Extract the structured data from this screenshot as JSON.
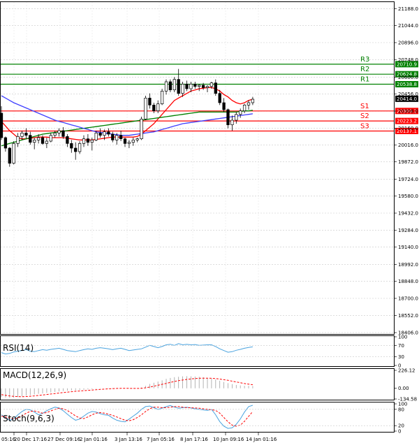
{
  "chart_data": [
    {
      "name": "main",
      "type": "candlestick",
      "title": "",
      "ylim": [
        18406,
        21190
      ],
      "y_ticks": [
        "21188.0",
        "21044.0",
        "20896.0",
        "20748.0",
        "20600.0",
        "20456.0",
        "20308.0",
        "20160.0",
        "20016.0",
        "19872.0",
        "19724.0",
        "19580.0",
        "19432.0",
        "19284.0",
        "19140.0",
        "18992.0",
        "18848.0",
        "18700.0",
        "18552.0",
        "18406.0"
      ],
      "x_labels": [
        "05:16",
        "20 Dec 17:16",
        "27 Dec 09:16",
        "2 Jan 01:16",
        "3 Jan 13:16",
        "7 Jan 05:16",
        "8 Jan 17:16",
        "10 Jan 09:16",
        "14 Jan 01:16"
      ],
      "candles": [
        {
          "o": 20290,
          "h": 20350,
          "l": 20060,
          "c": 20080
        },
        {
          "o": 20080,
          "h": 20090,
          "l": 19960,
          "c": 19990
        },
        {
          "o": 19990,
          "h": 20000,
          "l": 19830,
          "c": 19860
        },
        {
          "o": 19860,
          "h": 20050,
          "l": 19850,
          "c": 20030
        },
        {
          "o": 20030,
          "h": 20120,
          "l": 20000,
          "c": 20090
        },
        {
          "o": 20090,
          "h": 20140,
          "l": 20060,
          "c": 20120
        },
        {
          "o": 20120,
          "h": 20160,
          "l": 20070,
          "c": 20100
        },
        {
          "o": 20100,
          "h": 20130,
          "l": 20020,
          "c": 20040
        },
        {
          "o": 20040,
          "h": 20080,
          "l": 19980,
          "c": 20060
        },
        {
          "o": 20060,
          "h": 20110,
          "l": 20030,
          "c": 20080
        },
        {
          "o": 20080,
          "h": 20100,
          "l": 20020,
          "c": 20030
        },
        {
          "o": 20030,
          "h": 20080,
          "l": 19990,
          "c": 20050
        },
        {
          "o": 20050,
          "h": 20120,
          "l": 20040,
          "c": 20100
        },
        {
          "o": 20100,
          "h": 20140,
          "l": 20080,
          "c": 20120
        },
        {
          "o": 20120,
          "h": 20160,
          "l": 20090,
          "c": 20140
        },
        {
          "o": 20140,
          "h": 20170,
          "l": 20070,
          "c": 20090
        },
        {
          "o": 20090,
          "h": 20110,
          "l": 20000,
          "c": 20030
        },
        {
          "o": 20030,
          "h": 20060,
          "l": 19950,
          "c": 19990
        },
        {
          "o": 19990,
          "h": 20040,
          "l": 19890,
          "c": 19960
        },
        {
          "o": 19960,
          "h": 20050,
          "l": 19940,
          "c": 20030
        },
        {
          "o": 20030,
          "h": 20100,
          "l": 20000,
          "c": 20070
        },
        {
          "o": 20070,
          "h": 20110,
          "l": 20010,
          "c": 20040
        },
        {
          "o": 20040,
          "h": 20080,
          "l": 19970,
          "c": 20060
        },
        {
          "o": 20060,
          "h": 20140,
          "l": 20050,
          "c": 20120
        },
        {
          "o": 20120,
          "h": 20160,
          "l": 20080,
          "c": 20100
        },
        {
          "o": 20100,
          "h": 20150,
          "l": 20060,
          "c": 20130
        },
        {
          "o": 20130,
          "h": 20160,
          "l": 20090,
          "c": 20110
        },
        {
          "o": 20110,
          "h": 20130,
          "l": 20040,
          "c": 20060
        },
        {
          "o": 20060,
          "h": 20120,
          "l": 20020,
          "c": 20100
        },
        {
          "o": 20100,
          "h": 20140,
          "l": 20050,
          "c": 20070
        },
        {
          "o": 20070,
          "h": 20080,
          "l": 20000,
          "c": 20030
        },
        {
          "o": 20030,
          "h": 20060,
          "l": 19990,
          "c": 20040
        },
        {
          "o": 20040,
          "h": 20080,
          "l": 20010,
          "c": 20060
        },
        {
          "o": 20060,
          "h": 20080,
          "l": 20040,
          "c": 20070
        },
        {
          "o": 20070,
          "h": 20260,
          "l": 20060,
          "c": 20240
        },
        {
          "o": 20240,
          "h": 20440,
          "l": 20230,
          "c": 20420
        },
        {
          "o": 20420,
          "h": 20460,
          "l": 20330,
          "c": 20360
        },
        {
          "o": 20360,
          "h": 20380,
          "l": 20290,
          "c": 20310
        },
        {
          "o": 20310,
          "h": 20400,
          "l": 20290,
          "c": 20370
        },
        {
          "o": 20370,
          "h": 20500,
          "l": 20360,
          "c": 20480
        },
        {
          "o": 20480,
          "h": 20580,
          "l": 20450,
          "c": 20560
        },
        {
          "o": 20560,
          "h": 20580,
          "l": 20470,
          "c": 20490
        },
        {
          "o": 20490,
          "h": 20600,
          "l": 20470,
          "c": 20580
        },
        {
          "o": 20580,
          "h": 20670,
          "l": 20440,
          "c": 20460
        },
        {
          "o": 20460,
          "h": 20560,
          "l": 20430,
          "c": 20540
        },
        {
          "o": 20540,
          "h": 20570,
          "l": 20480,
          "c": 20500
        },
        {
          "o": 20500,
          "h": 20560,
          "l": 20470,
          "c": 20540
        },
        {
          "o": 20540,
          "h": 20560,
          "l": 20500,
          "c": 20520
        },
        {
          "o": 20520,
          "h": 20540,
          "l": 20480,
          "c": 20530
        },
        {
          "o": 20530,
          "h": 20550,
          "l": 20490,
          "c": 20510
        },
        {
          "o": 20510,
          "h": 20530,
          "l": 20470,
          "c": 20520
        },
        {
          "o": 20520,
          "h": 20560,
          "l": 20500,
          "c": 20550
        },
        {
          "o": 20550,
          "h": 20580,
          "l": 20440,
          "c": 20460
        },
        {
          "o": 20460,
          "h": 20490,
          "l": 20360,
          "c": 20380
        },
        {
          "o": 20380,
          "h": 20420,
          "l": 20300,
          "c": 20320
        },
        {
          "o": 20320,
          "h": 20330,
          "l": 20160,
          "c": 20190
        },
        {
          "o": 20190,
          "h": 20270,
          "l": 20140,
          "c": 20230
        },
        {
          "o": 20230,
          "h": 20300,
          "l": 20200,
          "c": 20280
        },
        {
          "o": 20280,
          "h": 20330,
          "l": 20250,
          "c": 20310
        },
        {
          "o": 20310,
          "h": 20370,
          "l": 20290,
          "c": 20360
        },
        {
          "o": 20360,
          "h": 20400,
          "l": 20320,
          "c": 20380
        },
        {
          "o": 20380,
          "h": 20430,
          "l": 20360,
          "c": 20410
        }
      ],
      "series": [
        {
          "name": "MA red",
          "color": "#ff0000",
          "values": [
            20220,
            20180,
            20140,
            20110,
            20080,
            20070,
            20070,
            20075,
            20080,
            20085,
            20085,
            20085,
            20080,
            20080,
            20080,
            20080,
            20075,
            20070,
            20065,
            20060,
            20060,
            20060,
            20060,
            20065,
            20070,
            20075,
            20080,
            20085,
            20085,
            20085,
            20085,
            20085,
            20085,
            20090,
            20110,
            20140,
            20170,
            20200,
            20240,
            20280,
            20320,
            20360,
            20400,
            20420,
            20440,
            20460,
            20480,
            20490,
            20500,
            20505,
            20510,
            20510,
            20500,
            20480,
            20450,
            20430,
            20400,
            20380,
            20370,
            20380,
            20400,
            20410
          ]
        },
        {
          "name": "MA green",
          "color": "#008000",
          "values": [
            20010,
            20020,
            20030,
            20040,
            20050,
            20060,
            20070,
            20080,
            20090,
            20100,
            20110,
            20115,
            20120,
            20125,
            20130,
            20135,
            20140,
            20145,
            20150,
            20155,
            20160,
            20165,
            20170,
            20175,
            20180,
            20185,
            20190,
            20195,
            20200,
            20205,
            20210,
            20215,
            20220,
            20225,
            20230,
            20235,
            20240,
            20245,
            20250,
            20255,
            20260,
            20265,
            20270,
            20275,
            20280,
            20285,
            20290,
            20295,
            20300,
            20300,
            20300,
            20300,
            20300,
            20300,
            20300,
            20300,
            20300,
            20300,
            20305,
            20310,
            20310,
            20315
          ]
        },
        {
          "name": "MA blue",
          "color": "#4040ff",
          "values": [
            20440,
            20420,
            20400,
            20380,
            20365,
            20350,
            20335,
            20320,
            20305,
            20290,
            20275,
            20260,
            20245,
            20230,
            20220,
            20210,
            20200,
            20190,
            20180,
            20170,
            20160,
            20150,
            20140,
            20130,
            20125,
            20120,
            20115,
            20110,
            20105,
            20100,
            20100,
            20100,
            20105,
            20110,
            20115,
            20120,
            20125,
            20130,
            20140,
            20150,
            20160,
            20170,
            20180,
            20190,
            20200,
            20205,
            20210,
            20215,
            20220,
            20225,
            20230,
            20235,
            20240,
            20245,
            20250,
            20255,
            20260,
            20265,
            20270,
            20275,
            20280,
            20285
          ]
        }
      ],
      "levels": [
        {
          "name": "R3",
          "value": 20710.9,
          "tag": "20710.9",
          "color": "#008000"
        },
        {
          "name": "R2",
          "value": 20624.8,
          "tag": "20624.8",
          "color": "#008000"
        },
        {
          "name": "R1",
          "value": 20538.8,
          "tag": "20538.8",
          "color": "#008000"
        },
        {
          "name": "S1",
          "value": 20309.2,
          "tag": "20309.2",
          "color": "#ff0000"
        },
        {
          "name": "S2",
          "value": 20223.2,
          "tag": "20223.2",
          "color": "#ff0000"
        },
        {
          "name": "S3",
          "value": 20137.1,
          "tag": "20137.1",
          "color": "#ff0000"
        }
      ],
      "current_price": {
        "value": 20414.0,
        "tag": "20414.0"
      }
    },
    {
      "name": "rsi",
      "type": "line",
      "title": "RSI(14)",
      "ylim": [
        0,
        100
      ],
      "y_ticks": [
        "100",
        "70",
        "30",
        "0"
      ],
      "series": [
        {
          "name": "RSI",
          "color": "#4aa3df",
          "values": [
            45,
            40,
            42,
            47,
            50,
            52,
            55,
            50,
            48,
            52,
            55,
            53,
            56,
            58,
            60,
            56,
            52,
            50,
            48,
            52,
            55,
            58,
            56,
            60,
            62,
            60,
            58,
            55,
            58,
            60,
            56,
            52,
            54,
            56,
            58,
            64,
            70,
            66,
            62,
            66,
            72,
            74,
            70,
            76,
            72,
            74,
            72,
            73,
            70,
            71,
            72,
            72,
            66,
            58,
            52,
            46,
            48,
            53,
            56,
            60,
            63,
            65
          ]
        }
      ]
    },
    {
      "name": "macd",
      "type": "bar+line",
      "title": "MACD(12,26,9)",
      "ylim": [
        -134.58,
        226.12
      ],
      "y_ticks": [
        "226.12",
        "0.00",
        "-134.58"
      ],
      "series": [
        {
          "name": "MACD",
          "color": "#a0a0a0",
          "values": [
            -110,
            -115,
            -120,
            -118,
            -110,
            -100,
            -92,
            -85,
            -78,
            -70,
            -64,
            -58,
            -52,
            -46,
            -40,
            -34,
            -30,
            -28,
            -26,
            -22,
            -18,
            -14,
            -10,
            -6,
            -3,
            0,
            2,
            4,
            4,
            2,
            0,
            -2,
            -3,
            -2,
            10,
            30,
            55,
            70,
            85,
            100,
            118,
            130,
            140,
            145,
            150,
            152,
            150,
            148,
            145,
            140,
            130,
            122,
            110,
            95,
            80,
            65,
            52,
            42,
            36,
            32,
            30,
            28
          ]
        },
        {
          "name": "Signal",
          "color": "#ff0000",
          "values": [
            -80,
            -88,
            -96,
            -102,
            -105,
            -106,
            -104,
            -100,
            -96,
            -90,
            -84,
            -78,
            -72,
            -66,
            -60,
            -54,
            -48,
            -43,
            -38,
            -34,
            -30,
            -26,
            -22,
            -18,
            -14,
            -10,
            -7,
            -4,
            -2,
            -1,
            -1,
            -1,
            -2,
            -2,
            0,
            6,
            15,
            26,
            38,
            50,
            62,
            74,
            86,
            96,
            104,
            112,
            118,
            122,
            126,
            128,
            128,
            126,
            122,
            116,
            108,
            100,
            90,
            80,
            70,
            60,
            52,
            45
          ]
        }
      ]
    },
    {
      "name": "stoch",
      "type": "line",
      "title": "Stoch(9,6,3)",
      "ylim": [
        0,
        100
      ],
      "y_ticks": [
        "100",
        "80",
        "20",
        "0"
      ],
      "series": [
        {
          "name": "%K",
          "color": "#4aa3df",
          "values": [
            60,
            50,
            40,
            45,
            60,
            72,
            80,
            78,
            70,
            60,
            65,
            75,
            82,
            88,
            85,
            75,
            62,
            50,
            40,
            44,
            55,
            66,
            72,
            70,
            64,
            60,
            58,
            48,
            40,
            36,
            34,
            44,
            55,
            66,
            80,
            90,
            92,
            86,
            80,
            84,
            90,
            94,
            88,
            84,
            86,
            88,
            85,
            82,
            80,
            78,
            76,
            80,
            60,
            35,
            18,
            10,
            12,
            25,
            45,
            70,
            90,
            95
          ]
        },
        {
          "name": "%D",
          "color": "#ff0000",
          "values": [
            55,
            52,
            48,
            45,
            48,
            56,
            66,
            72,
            74,
            70,
            66,
            68,
            74,
            80,
            84,
            82,
            76,
            66,
            56,
            48,
            46,
            52,
            60,
            66,
            68,
            66,
            62,
            58,
            52,
            46,
            40,
            38,
            42,
            50,
            60,
            72,
            82,
            88,
            88,
            86,
            86,
            88,
            90,
            90,
            88,
            86,
            86,
            85,
            84,
            82,
            80,
            79,
            76,
            66,
            50,
            34,
            22,
            18,
            22,
            36,
            54,
            72
          ]
        }
      ]
    }
  ]
}
